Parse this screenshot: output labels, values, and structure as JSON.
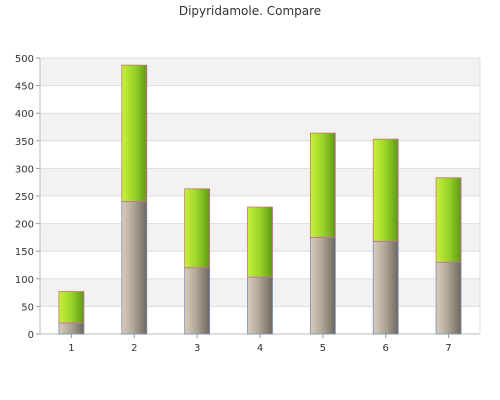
{
  "chart_data": {
    "type": "bar",
    "stacked": true,
    "title": "Dipyridamole. Compare",
    "xlabel": "",
    "ylabel": "",
    "categories": [
      "1",
      "2",
      "3",
      "4",
      "5",
      "6",
      "7"
    ],
    "series": [
      {
        "values": [
          20,
          240,
          120,
          103,
          175,
          168,
          130
        ],
        "color": "#a89f93"
      },
      {
        "values": [
          57,
          247,
          143,
          127,
          189,
          185,
          153
        ],
        "color": "#99d82a"
      }
    ],
    "ylim": [
      0,
      500
    ],
    "yticks": [
      0,
      50,
      100,
      150,
      200,
      250,
      300,
      350,
      400,
      450,
      500
    ],
    "grid": true,
    "legend": "none"
  }
}
